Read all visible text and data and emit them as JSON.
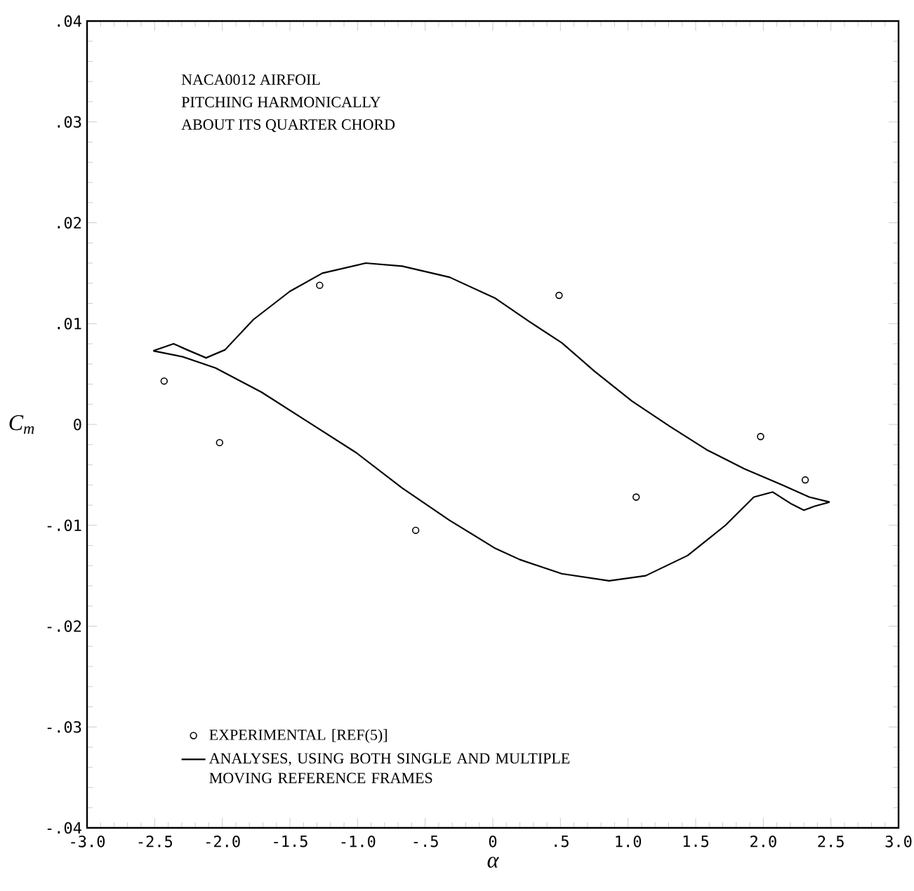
{
  "chart_data": {
    "type": "line",
    "xlabel": "α",
    "ylabel": "C$_{m}$",
    "annotations": [
      "NACA0012 AIRFOIL",
      "PITCHING HARMONICALLY",
      "ABOUT ITS QUARTER CHORD"
    ],
    "series": [
      {
        "name": "EXPERIMENTAL [REF(5)]",
        "type": "scatter",
        "marker": "circle",
        "color": "#000000",
        "x": [
          -2.43,
          -2.02,
          -1.28,
          -0.57,
          0.49,
          1.06,
          1.98,
          2.31
        ],
        "values": [
          0.0043,
          -0.0018,
          0.0138,
          -0.0105,
          0.0128,
          -0.0072,
          -0.0012,
          -0.0055
        ]
      },
      {
        "name": "ANALYSES, USING BOTH SINGLE AND MULTIPLE MOVING REFERENCE FRAMES",
        "marker": "none",
        "line_style": "solid",
        "color": "#000000",
        "x": [
          -2.51,
          -2.36,
          -2.26,
          -2.12,
          -1.98,
          -1.77,
          -1.5,
          -1.26,
          -0.94,
          -0.67,
          -0.32,
          0.02,
          0.27,
          0.51,
          0.75,
          1.03,
          1.31,
          1.58,
          1.86,
          2.14,
          2.34,
          2.49
        ],
        "values": [
          0.0073,
          0.008,
          0.0074,
          0.0066,
          0.0074,
          0.0104,
          0.0132,
          0.015,
          0.016,
          0.0157,
          0.0146,
          0.0125,
          0.0102,
          0.0081,
          0.0053,
          0.0023,
          -0.0002,
          -0.0025,
          -0.0044,
          -0.006,
          -0.0072,
          -0.0077
        ]
      },
      {
        "marker": "none",
        "line_style": "solid",
        "color": "#000000",
        "x": [
          -2.51,
          -2.29,
          -2.05,
          -1.71,
          -1.36,
          -1.01,
          -0.67,
          -0.32,
          0.02,
          0.2,
          0.51,
          0.86,
          1.13,
          1.44,
          1.72,
          1.93,
          2.07,
          2.21,
          2.3,
          2.38,
          2.49
        ],
        "values": [
          0.0073,
          0.0067,
          0.0056,
          0.0032,
          0.0002,
          -0.0028,
          -0.0063,
          -0.0095,
          -0.0123,
          -0.0134,
          -0.0148,
          -0.0155,
          -0.015,
          -0.013,
          -0.01,
          -0.0072,
          -0.0067,
          -0.0079,
          -0.0085,
          -0.0081,
          -0.0077
        ]
      }
    ],
    "xlim": [
      -3.0,
      3.0
    ],
    "ylim": [
      -0.04,
      0.04
    ],
    "xticks": [
      {
        "value": -3.0,
        "label": "-3.0"
      },
      {
        "value": -2.5,
        "label": "-2.5"
      },
      {
        "value": -2.0,
        "label": "-2.0"
      },
      {
        "value": -1.5,
        "label": "-1.5"
      },
      {
        "value": -1.0,
        "label": "-1.0"
      },
      {
        "value": -0.5,
        "label": "-.5"
      },
      {
        "value": 0,
        "label": "0"
      },
      {
        "value": 0.5,
        "label": ".5"
      },
      {
        "value": 1.0,
        "label": "1.0"
      },
      {
        "value": 1.5,
        "label": "1.5"
      },
      {
        "value": 2.0,
        "label": "2.0"
      },
      {
        "value": 2.5,
        "label": "2.5"
      },
      {
        "value": 3.0,
        "label": "3.0"
      }
    ],
    "yticks": [
      {
        "value": -0.04,
        "label": "-.04"
      },
      {
        "value": -0.03,
        "label": "-.03"
      },
      {
        "value": -0.02,
        "label": "-.02"
      },
      {
        "value": -0.01,
        "label": "-.01"
      },
      {
        "value": 0,
        "label": "0"
      },
      {
        "value": 0.01,
        "label": ".01"
      },
      {
        "value": 0.02,
        "label": ".02"
      },
      {
        "value": 0.03,
        "label": ".03"
      },
      {
        "value": 0.04,
        "label": ".04"
      }
    ],
    "grid": false,
    "legend": "bottom left"
  }
}
